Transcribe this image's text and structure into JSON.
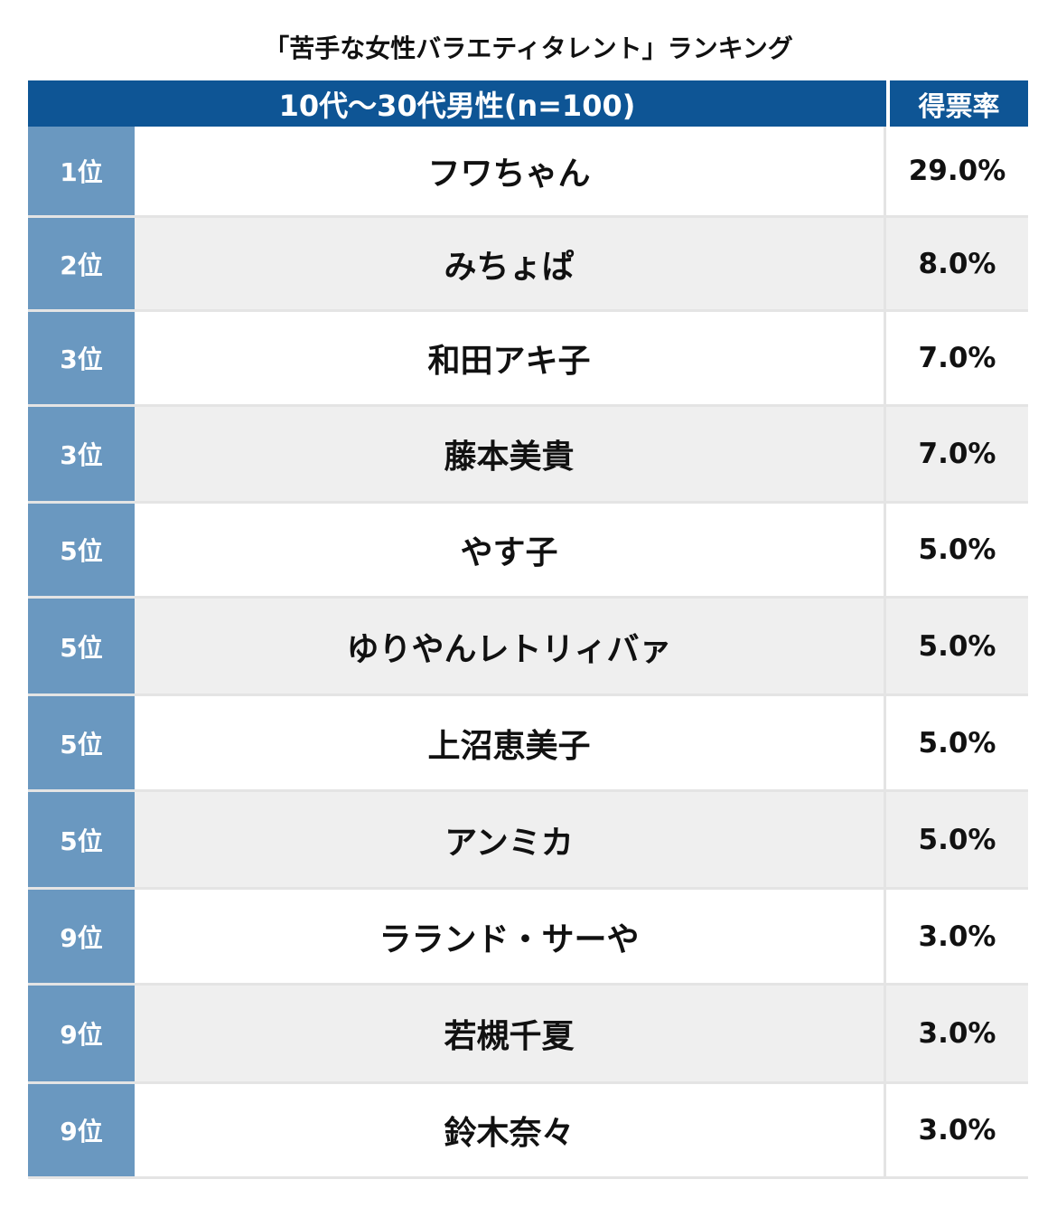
{
  "chart_data": {
    "type": "table",
    "title": "「苦手な女性バラエティタレント」ランキング",
    "header": {
      "group_label": "10代〜30代男性(n=100)",
      "rate_label": "得票率"
    },
    "rows": [
      {
        "rank": "1位",
        "name": "フワちゃん",
        "percent": "29.0%",
        "value": 29.0
      },
      {
        "rank": "2位",
        "name": "みちょぱ",
        "percent": "8.0%",
        "value": 8.0
      },
      {
        "rank": "3位",
        "name": "和田アキ子",
        "percent": "7.0%",
        "value": 7.0
      },
      {
        "rank": "3位",
        "name": "藤本美貴",
        "percent": "7.0%",
        "value": 7.0
      },
      {
        "rank": "5位",
        "name": "やす子",
        "percent": "5.0%",
        "value": 5.0
      },
      {
        "rank": "5位",
        "name": "ゆりやんレトリィバァ",
        "percent": "5.0%",
        "value": 5.0
      },
      {
        "rank": "5位",
        "name": "上沼恵美子",
        "percent": "5.0%",
        "value": 5.0
      },
      {
        "rank": "5位",
        "name": "アンミカ",
        "percent": "5.0%",
        "value": 5.0
      },
      {
        "rank": "9位",
        "name": "ラランド・サーや",
        "percent": "3.0%",
        "value": 3.0
      },
      {
        "rank": "9位",
        "name": "若槻千夏",
        "percent": "3.0%",
        "value": 3.0
      },
      {
        "rank": "9位",
        "name": "鈴木奈々",
        "percent": "3.0%",
        "value": 3.0
      }
    ]
  },
  "colors": {
    "header_bg": "#0e5595",
    "rank_bg": "#6a98c0",
    "row_alt_bg": "#efefef"
  }
}
